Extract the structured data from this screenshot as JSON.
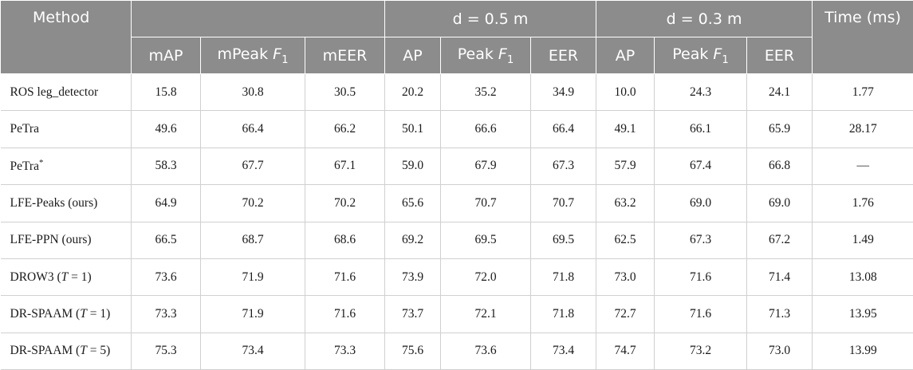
{
  "headers": {
    "method": "Method",
    "group_all": "",
    "group_d05": "d = 0.5 m",
    "group_d03": "d = 0.3 m",
    "time": "Time (ms)",
    "sub": {
      "map": "mAP",
      "mpeak_prefix": "mPeak ",
      "meer": "mEER",
      "ap": "AP",
      "peak_prefix": "Peak ",
      "eer": "EER",
      "f_var": "F",
      "f_sub": "1"
    }
  },
  "rows": [
    {
      "method": "ROS leg_detector",
      "t_val": "",
      "sup": "",
      "values": [
        "15.8",
        "30.8",
        "30.5",
        "20.2",
        "35.2",
        "34.9",
        "10.0",
        "24.3",
        "24.1",
        "1.77"
      ]
    },
    {
      "method": "PeTra",
      "t_val": "",
      "sup": "",
      "values": [
        "49.6",
        "66.4",
        "66.2",
        "50.1",
        "66.6",
        "66.4",
        "49.1",
        "66.1",
        "65.9",
        "28.17"
      ]
    },
    {
      "method": "PeTra",
      "t_val": "",
      "sup": "*",
      "values": [
        "58.3",
        "67.7",
        "67.1",
        "59.0",
        "67.9",
        "67.3",
        "57.9",
        "67.4",
        "66.8",
        "—"
      ]
    },
    {
      "method": "LFE-Peaks (ours)",
      "t_val": "",
      "sup": "",
      "values": [
        "64.9",
        "70.2",
        "70.2",
        "65.6",
        "70.7",
        "70.7",
        "63.2",
        "69.0",
        "69.0",
        "1.76"
      ]
    },
    {
      "method": "LFE-PPN (ours)",
      "t_val": "",
      "sup": "",
      "values": [
        "66.5",
        "68.7",
        "68.6",
        "69.2",
        "69.5",
        "69.5",
        "62.5",
        "67.3",
        "67.2",
        "1.49"
      ]
    },
    {
      "method": "DROW3 (",
      "t_val": "T",
      "t_rest": " = 1)",
      "sup": "",
      "values": [
        "73.6",
        "71.9",
        "71.6",
        "73.9",
        "72.0",
        "71.8",
        "73.0",
        "71.6",
        "71.4",
        "13.08"
      ]
    },
    {
      "method": "DR-SPAAM (",
      "t_val": "T",
      "t_rest": " = 1)",
      "sup": "",
      "values": [
        "73.3",
        "71.9",
        "71.6",
        "73.7",
        "72.1",
        "71.8",
        "72.7",
        "71.6",
        "71.3",
        "13.95"
      ]
    },
    {
      "method": "DR-SPAAM (",
      "t_val": "T",
      "t_rest": " = 5)",
      "sup": "",
      "values": [
        "75.3",
        "73.4",
        "73.3",
        "75.6",
        "73.6",
        "73.4",
        "74.7",
        "73.2",
        "73.0",
        "13.99"
      ]
    }
  ]
}
